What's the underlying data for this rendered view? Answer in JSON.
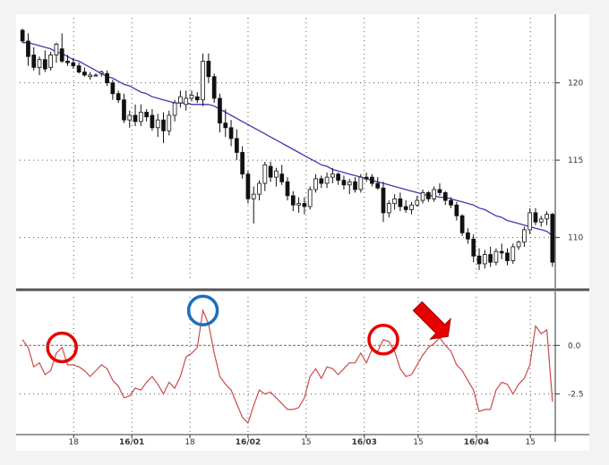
{
  "chart_data": [
    {
      "type": "candlestick",
      "panel": "price",
      "x_tick_labels": [
        "18",
        "16/01",
        "18",
        "16/02",
        "15",
        "16/03",
        "15",
        "16/04",
        "15"
      ],
      "y_ticks": [
        110,
        115,
        120
      ],
      "y_tick_labels": [
        "110",
        "115",
        "120"
      ],
      "ylim": [
        107.2,
        124.2
      ],
      "grid": true,
      "colors": {
        "up_body": "#ffffff",
        "down_body": "#111111",
        "wick": "#111111",
        "moving_average": "#3b3bb3"
      },
      "candles": [
        [
          123.4,
          123.5,
          122.6,
          122.7
        ],
        [
          122.7,
          123.2,
          121.1,
          121.7
        ],
        [
          121.8,
          122.3,
          120.8,
          121.0
        ],
        [
          121.0,
          121.7,
          120.5,
          121.5
        ],
        [
          121.5,
          122.1,
          120.7,
          120.9
        ],
        [
          121.0,
          122.0,
          120.8,
          121.8
        ],
        [
          121.8,
          122.6,
          121.3,
          122.5
        ],
        [
          122.2,
          123.2,
          121.3,
          121.4
        ],
        [
          121.4,
          121.8,
          121.1,
          121.3
        ],
        [
          121.3,
          121.6,
          120.9,
          121.1
        ],
        [
          121.1,
          121.3,
          120.6,
          120.7
        ],
        [
          120.7,
          121.0,
          120.4,
          120.5
        ],
        [
          120.4,
          120.7,
          120.2,
          120.5
        ],
        [
          120.5,
          120.6,
          120.4,
          120.5
        ],
        [
          120.6,
          120.8,
          120.4,
          120.7
        ],
        [
          120.6,
          120.8,
          119.8,
          120.0
        ],
        [
          120.0,
          120.2,
          118.9,
          119.3
        ],
        [
          119.3,
          119.5,
          118.7,
          118.9
        ],
        [
          118.9,
          119.3,
          117.4,
          117.6
        ],
        [
          117.6,
          118.2,
          117.1,
          117.9
        ],
        [
          117.9,
          118.6,
          117.2,
          117.5
        ],
        [
          117.5,
          118.6,
          117.2,
          118.1
        ],
        [
          118.1,
          118.3,
          117.5,
          117.8
        ],
        [
          117.9,
          118.3,
          116.9,
          117.1
        ],
        [
          117.1,
          118.0,
          116.5,
          117.6
        ],
        [
          117.6,
          118.1,
          116.1,
          116.9
        ],
        [
          116.9,
          118.2,
          116.6,
          117.9
        ],
        [
          117.9,
          118.9,
          117.5,
          118.7
        ],
        [
          118.7,
          119.5,
          118.4,
          119.1
        ],
        [
          118.6,
          119.5,
          118.2,
          119.0
        ],
        [
          119.0,
          119.5,
          118.8,
          119.2
        ],
        [
          119.1,
          119.4,
          118.7,
          118.9
        ],
        [
          118.9,
          121.9,
          118.5,
          121.4
        ],
        [
          121.4,
          121.9,
          120.0,
          120.4
        ],
        [
          120.4,
          120.6,
          118.7,
          119.0
        ],
        [
          119.0,
          119.3,
          116.8,
          117.4
        ],
        [
          117.4,
          118.3,
          116.5,
          117.1
        ],
        [
          117.1,
          117.6,
          115.9,
          116.4
        ],
        [
          116.4,
          117.0,
          115.0,
          115.5
        ],
        [
          115.5,
          115.9,
          113.8,
          114.1
        ],
        [
          114.1,
          114.3,
          112.2,
          112.5
        ],
        [
          112.5,
          113.3,
          110.9,
          112.8
        ],
        [
          112.8,
          113.7,
          112.4,
          113.5
        ],
        [
          113.5,
          114.9,
          113.0,
          114.7
        ],
        [
          114.6,
          114.9,
          113.6,
          113.9
        ],
        [
          113.9,
          114.5,
          113.3,
          114.3
        ],
        [
          114.1,
          114.7,
          113.4,
          113.6
        ],
        [
          113.6,
          113.9,
          112.4,
          112.7
        ],
        [
          112.7,
          113.0,
          111.7,
          112.1
        ],
        [
          112.1,
          112.6,
          111.6,
          112.2
        ],
        [
          112.2,
          112.6,
          111.5,
          112.0
        ],
        [
          112.0,
          113.3,
          111.8,
          113.1
        ],
        [
          113.1,
          114.1,
          112.9,
          113.8
        ],
        [
          113.8,
          114.0,
          113.2,
          113.5
        ],
        [
          113.5,
          114.2,
          113.2,
          113.9
        ],
        [
          113.9,
          114.5,
          113.5,
          114.1
        ],
        [
          114.1,
          114.2,
          113.4,
          113.7
        ],
        [
          113.7,
          114.0,
          113.1,
          113.4
        ],
        [
          113.4,
          113.8,
          112.8,
          113.6
        ],
        [
          113.6,
          113.9,
          112.9,
          113.1
        ],
        [
          113.1,
          114.1,
          112.9,
          113.9
        ],
        [
          113.9,
          114.2,
          113.6,
          113.8
        ],
        [
          113.9,
          114.1,
          113.3,
          113.5
        ],
        [
          113.5,
          113.9,
          113.1,
          113.2
        ],
        [
          113.2,
          113.6,
          111.0,
          111.6
        ],
        [
          111.6,
          112.4,
          111.3,
          112.2
        ],
        [
          112.2,
          112.8,
          111.8,
          112.5
        ],
        [
          112.5,
          112.9,
          111.7,
          112.0
        ],
        [
          112.0,
          112.4,
          111.6,
          111.8
        ],
        [
          111.8,
          112.3,
          111.5,
          112.1
        ],
        [
          112.1,
          112.7,
          112.0,
          112.4
        ],
        [
          112.4,
          113.1,
          112.2,
          112.9
        ],
        [
          112.9,
          113.0,
          112.3,
          112.5
        ],
        [
          112.5,
          113.3,
          112.3,
          113.1
        ],
        [
          113.1,
          113.5,
          112.7,
          112.9
        ],
        [
          112.9,
          113.0,
          112.1,
          112.4
        ],
        [
          112.4,
          112.6,
          111.9,
          112.1
        ],
        [
          112.1,
          112.3,
          111.1,
          111.4
        ],
        [
          111.4,
          111.5,
          110.1,
          110.3
        ],
        [
          110.3,
          110.6,
          109.6,
          109.9
        ],
        [
          109.9,
          110.2,
          108.4,
          108.8
        ],
        [
          108.8,
          109.3,
          107.9,
          108.3
        ],
        [
          108.3,
          109.2,
          108.0,
          108.9
        ],
        [
          108.9,
          109.4,
          108.1,
          108.4
        ],
        [
          108.4,
          109.3,
          108.2,
          109.1
        ],
        [
          109.1,
          109.6,
          108.6,
          109.0
        ],
        [
          109.0,
          109.3,
          108.2,
          108.5
        ],
        [
          108.5,
          109.6,
          108.3,
          109.4
        ],
        [
          109.4,
          109.8,
          109.2,
          109.7
        ],
        [
          109.7,
          110.7,
          109.4,
          110.5
        ],
        [
          110.5,
          111.9,
          110.2,
          111.6
        ],
        [
          111.6,
          111.9,
          110.8,
          111.0
        ],
        [
          111.0,
          111.4,
          110.7,
          111.2
        ],
        [
          111.2,
          111.7,
          110.8,
          111.5
        ],
        [
          111.5,
          111.6,
          108.1,
          108.4
        ]
      ],
      "moving_average": [
        122.6,
        122.6,
        122.5,
        122.4,
        122.3,
        122.2,
        122.0,
        121.9,
        121.7,
        121.5,
        121.4,
        121.2,
        121.0,
        120.8,
        120.6,
        120.4,
        120.3,
        120.1,
        119.9,
        119.8,
        119.6,
        119.4,
        119.3,
        119.1,
        119.0,
        118.9,
        118.8,
        118.7,
        118.7,
        118.7,
        118.6,
        118.6,
        118.6,
        118.6,
        118.5,
        118.3,
        118.1,
        117.9,
        117.7,
        117.5,
        117.3,
        117.1,
        116.9,
        116.7,
        116.5,
        116.3,
        116.1,
        115.9,
        115.7,
        115.5,
        115.3,
        115.1,
        114.9,
        114.7,
        114.6,
        114.4,
        114.3,
        114.2,
        114.1,
        114.0,
        113.9,
        113.8,
        113.7,
        113.6,
        113.5,
        113.4,
        113.3,
        113.2,
        113.1,
        113.0,
        112.9,
        112.8,
        112.7,
        112.7,
        112.6,
        112.6,
        112.5,
        112.4,
        112.3,
        112.2,
        112.1,
        111.9,
        111.8,
        111.6,
        111.4,
        111.3,
        111.1,
        111.0,
        110.9,
        110.8,
        110.7,
        110.6,
        110.5,
        110.4,
        110.1
      ]
    },
    {
      "type": "line",
      "panel": "oscillator",
      "y_ticks": [
        0.0,
        -2.5
      ],
      "y_tick_labels": [
        "0.0",
        "-2.5"
      ],
      "ylim": [
        -4.5,
        2.5
      ],
      "color": "#cc4a4a",
      "zero_line": true,
      "values": [
        0.3,
        -0.1,
        -1.1,
        -0.9,
        -1.5,
        -1.3,
        -0.4,
        -0.1,
        -1.0,
        -1.0,
        -1.1,
        -1.3,
        -1.6,
        -1.3,
        -1.0,
        -1.2,
        -1.8,
        -2.1,
        -2.7,
        -2.6,
        -2.2,
        -2.3,
        -1.9,
        -1.6,
        -2.0,
        -2.5,
        -1.9,
        -2.2,
        -1.6,
        -0.6,
        -0.4,
        -0.1,
        1.8,
        1.1,
        -0.4,
        -1.6,
        -2.0,
        -2.3,
        -3.0,
        -3.7,
        -4.0,
        -3.1,
        -2.3,
        -2.5,
        -2.4,
        -2.7,
        -3.0,
        -3.3,
        -3.3,
        -3.2,
        -2.7,
        -1.6,
        -1.2,
        -1.7,
        -1.1,
        -1.2,
        -1.5,
        -1.2,
        -0.9,
        -0.9,
        -0.4,
        -0.9,
        -0.2,
        -0.3,
        0.3,
        0.2,
        -0.3,
        -1.2,
        -1.6,
        -1.5,
        -1.0,
        -0.5,
        -0.1,
        0.1,
        0.4,
        0.0,
        -0.3,
        -1.0,
        -1.3,
        -1.8,
        -2.3,
        -3.4,
        -3.3,
        -3.3,
        -2.3,
        -1.9,
        -2.0,
        -2.5,
        -2.0,
        -1.7,
        -1.0,
        1.0,
        0.6,
        0.8,
        -2.9
      ]
    }
  ],
  "annotations": {
    "circles": [
      {
        "index": 7,
        "color": "#e60000"
      },
      {
        "index": 32,
        "color": "#1a6fbd"
      },
      {
        "index": 64,
        "color": "#e60000"
      }
    ],
    "arrow": {
      "index": 75,
      "color": "#e60000"
    }
  }
}
